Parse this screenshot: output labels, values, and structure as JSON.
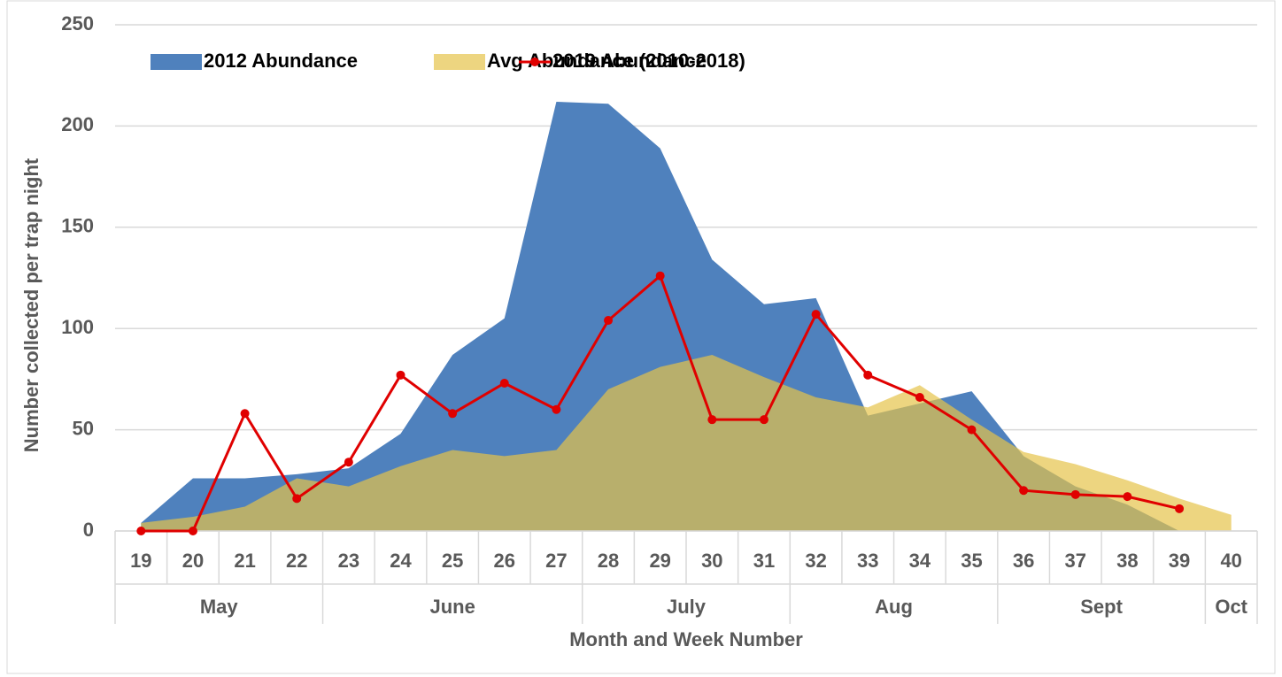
{
  "chart_data": {
    "type": "area_line",
    "categories": [
      "19",
      "20",
      "21",
      "22",
      "23",
      "24",
      "25",
      "26",
      "27",
      "28",
      "29",
      "30",
      "31",
      "32",
      "33",
      "34",
      "35",
      "36",
      "37",
      "38",
      "39",
      "40"
    ],
    "months": [
      "May",
      null,
      null,
      null,
      "June",
      null,
      null,
      null,
      null,
      "July",
      null,
      null,
      null,
      "Aug",
      null,
      null,
      null,
      "Sept",
      null,
      null,
      null,
      "Oct"
    ],
    "xlabel": "Month and Week Number",
    "ylabel": "Number collected per trap night",
    "ylim": [
      0,
      250
    ],
    "yticks": [
      0,
      50,
      100,
      150,
      200,
      250
    ],
    "grid": true,
    "legend": "top",
    "series": [
      {
        "name": "2012 Abundance",
        "kind": "area",
        "color": "#4f81bd",
        "values": [
          4,
          26,
          26,
          28,
          31,
          48,
          87,
          105,
          212,
          211,
          189,
          134,
          112,
          115,
          57,
          63,
          69,
          37,
          22,
          13,
          0,
          null
        ]
      },
      {
        "name": "Avg Abundance (2010-2018)",
        "kind": "area",
        "color": "#e6c34a",
        "values": [
          4,
          7,
          12,
          26,
          22,
          32,
          40,
          37,
          40,
          70,
          81,
          87,
          76,
          66,
          61,
          72,
          55,
          39,
          33,
          25,
          16,
          8
        ]
      },
      {
        "name": "2019 Abundance",
        "kind": "line",
        "color": "#e00000",
        "values": [
          0,
          0,
          58,
          16,
          34,
          77,
          58,
          73,
          60,
          104,
          126,
          55,
          55,
          107,
          77,
          66,
          50,
          20,
          18,
          17,
          11,
          null
        ]
      }
    ]
  }
}
